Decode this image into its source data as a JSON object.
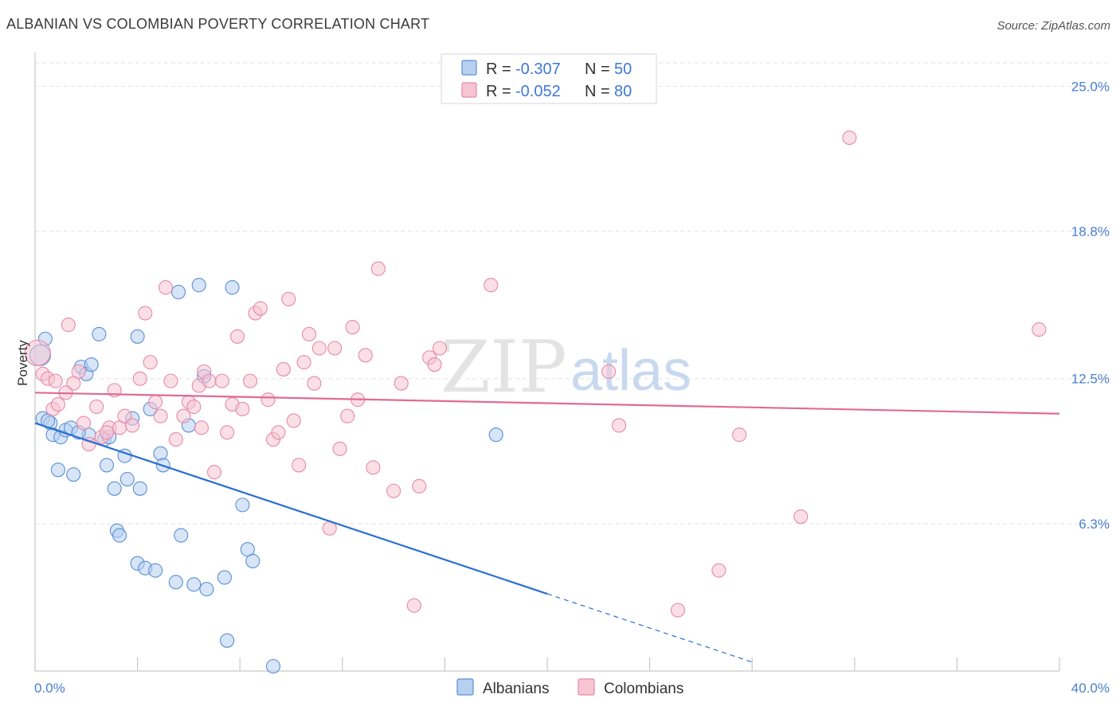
{
  "header": {
    "title": "ALBANIAN VS COLOMBIAN POVERTY CORRELATION CHART",
    "source": "Source: ZipAtlas.com"
  },
  "watermark": {
    "zip": "ZIP",
    "atlas": "atlas"
  },
  "colors": {
    "albanians_fill": "#b7d0f0",
    "albanians_stroke": "#5b8fd6",
    "albanians_line": "#2a6fd1",
    "colombians_fill": "#f6c4d3",
    "colombians_stroke": "#e58aa8",
    "colombians_line": "#e06b93",
    "axis_text": "#4a7fcf"
  },
  "legend": {
    "rows": [
      {
        "r_label": "R =",
        "r_value": "-0.307",
        "n_label": "N =",
        "n_value": "50"
      },
      {
        "r_label": "R =",
        "r_value": "-0.052",
        "n_label": "N =",
        "n_value": "80"
      }
    ]
  },
  "chart_data": {
    "type": "scatter",
    "ylabel": "Poverty",
    "xlim": [
      0,
      40
    ],
    "ylim": [
      0,
      26.0
    ],
    "x_tick_labels": [
      "0.0%",
      "40.0%"
    ],
    "y_ticks": [
      {
        "value": 6.3,
        "label": "6.3%"
      },
      {
        "value": 12.5,
        "label": "12.5%"
      },
      {
        "value": 18.8,
        "label": "18.8%"
      },
      {
        "value": 25.0,
        "label": "25.0%"
      }
    ],
    "series": [
      {
        "name": "Albanians",
        "trend": {
          "x0": 0,
          "y0": 10.6,
          "x1": 20.0,
          "y1": 3.3,
          "dash_to_x": 28.0
        },
        "points": [
          [
            0.2,
            13.5
          ],
          [
            0.4,
            14.2
          ],
          [
            0.3,
            10.8
          ],
          [
            0.6,
            10.6
          ],
          [
            0.7,
            10.1
          ],
          [
            1.0,
            10.0
          ],
          [
            1.2,
            10.3
          ],
          [
            0.9,
            8.6
          ],
          [
            1.5,
            8.4
          ],
          [
            1.4,
            10.4
          ],
          [
            1.8,
            13.0
          ],
          [
            2.0,
            12.7
          ],
          [
            2.2,
            13.1
          ],
          [
            2.5,
            14.4
          ],
          [
            2.1,
            10.1
          ],
          [
            2.7,
            9.9
          ],
          [
            2.8,
            8.8
          ],
          [
            3.1,
            7.8
          ],
          [
            3.5,
            9.2
          ],
          [
            3.6,
            8.2
          ],
          [
            3.8,
            10.8
          ],
          [
            4.1,
            7.8
          ],
          [
            4.0,
            14.3
          ],
          [
            3.2,
            6.0
          ],
          [
            3.3,
            5.8
          ],
          [
            4.5,
            11.2
          ],
          [
            4.9,
            9.3
          ],
          [
            5.0,
            8.8
          ],
          [
            5.6,
            16.2
          ],
          [
            5.7,
            5.8
          ],
          [
            6.0,
            10.5
          ],
          [
            6.4,
            16.5
          ],
          [
            6.6,
            12.6
          ],
          [
            7.7,
            16.4
          ],
          [
            8.1,
            7.1
          ],
          [
            8.3,
            5.2
          ],
          [
            8.5,
            4.7
          ],
          [
            4.0,
            4.6
          ],
          [
            4.3,
            4.4
          ],
          [
            4.7,
            4.3
          ],
          [
            5.5,
            3.8
          ],
          [
            6.2,
            3.7
          ],
          [
            6.7,
            3.5
          ],
          [
            7.4,
            4.0
          ],
          [
            7.5,
            1.3
          ],
          [
            9.3,
            0.2
          ],
          [
            18.0,
            10.1
          ],
          [
            1.7,
            10.2
          ],
          [
            2.9,
            10.0
          ],
          [
            0.5,
            10.7
          ]
        ]
      },
      {
        "name": "Colombians",
        "trend": {
          "x0": 0,
          "y0": 11.9,
          "x1": 40.0,
          "y1": 11.0
        },
        "points": [
          [
            0.1,
            13.6
          ],
          [
            0.3,
            12.7
          ],
          [
            0.5,
            12.5
          ],
          [
            0.7,
            11.2
          ],
          [
            0.9,
            11.4
          ],
          [
            1.3,
            14.8
          ],
          [
            1.5,
            12.3
          ],
          [
            1.7,
            12.8
          ],
          [
            1.9,
            10.6
          ],
          [
            2.1,
            9.7
          ],
          [
            2.4,
            11.3
          ],
          [
            2.6,
            10.0
          ],
          [
            2.9,
            10.4
          ],
          [
            3.1,
            12.0
          ],
          [
            3.3,
            10.4
          ],
          [
            3.5,
            10.9
          ],
          [
            3.8,
            10.5
          ],
          [
            4.1,
            12.5
          ],
          [
            4.3,
            15.3
          ],
          [
            4.5,
            13.2
          ],
          [
            4.7,
            11.5
          ],
          [
            4.9,
            10.9
          ],
          [
            5.1,
            16.4
          ],
          [
            5.3,
            12.4
          ],
          [
            5.5,
            9.9
          ],
          [
            5.8,
            10.9
          ],
          [
            6.0,
            11.5
          ],
          [
            6.2,
            11.3
          ],
          [
            6.4,
            12.2
          ],
          [
            6.6,
            12.8
          ],
          [
            6.8,
            12.4
          ],
          [
            7.0,
            8.5
          ],
          [
            7.3,
            12.4
          ],
          [
            7.5,
            10.2
          ],
          [
            7.7,
            11.4
          ],
          [
            7.9,
            14.3
          ],
          [
            8.1,
            11.2
          ],
          [
            8.4,
            12.4
          ],
          [
            8.6,
            15.3
          ],
          [
            8.8,
            15.5
          ],
          [
            9.1,
            11.6
          ],
          [
            9.3,
            9.9
          ],
          [
            9.5,
            10.2
          ],
          [
            9.7,
            12.9
          ],
          [
            9.9,
            15.9
          ],
          [
            10.1,
            10.7
          ],
          [
            10.3,
            8.8
          ],
          [
            10.5,
            13.2
          ],
          [
            10.7,
            14.4
          ],
          [
            10.9,
            12.3
          ],
          [
            11.1,
            13.8
          ],
          [
            11.5,
            6.1
          ],
          [
            11.7,
            13.8
          ],
          [
            11.9,
            9.5
          ],
          [
            12.2,
            10.9
          ],
          [
            12.4,
            14.7
          ],
          [
            12.6,
            11.6
          ],
          [
            12.9,
            13.5
          ],
          [
            13.2,
            8.7
          ],
          [
            13.4,
            17.2
          ],
          [
            14.0,
            7.7
          ],
          [
            14.3,
            12.3
          ],
          [
            14.8,
            2.8
          ],
          [
            15.0,
            7.9
          ],
          [
            15.4,
            13.4
          ],
          [
            15.6,
            13.1
          ],
          [
            15.8,
            13.8
          ],
          [
            17.8,
            16.5
          ],
          [
            22.4,
            12.8
          ],
          [
            22.8,
            10.5
          ],
          [
            25.1,
            2.6
          ],
          [
            26.7,
            4.3
          ],
          [
            27.5,
            10.1
          ],
          [
            29.9,
            6.6
          ],
          [
            31.8,
            22.8
          ],
          [
            39.2,
            14.6
          ],
          [
            1.2,
            11.9
          ],
          [
            2.8,
            10.2
          ],
          [
            6.5,
            10.4
          ],
          [
            0.8,
            12.4
          ]
        ]
      }
    ],
    "legend_position": "top-center"
  },
  "bottom_legend": {
    "items": [
      "Albanians",
      "Colombians"
    ]
  }
}
